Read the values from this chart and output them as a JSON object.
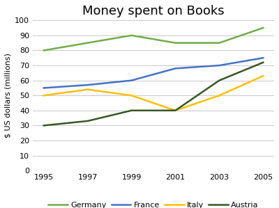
{
  "title": "Money spent on Books",
  "ylabel": "$ US dollars (millions)",
  "years": [
    1995,
    1997,
    1999,
    2001,
    2003,
    2005
  ],
  "series": {
    "Germany": {
      "values": [
        80,
        85,
        90,
        85,
        85,
        95
      ],
      "color": "#70ad47"
    },
    "France": {
      "values": [
        55,
        57,
        60,
        68,
        70,
        75
      ],
      "color": "#4472c4"
    },
    "Italy": {
      "values": [
        50,
        54,
        50,
        40,
        50,
        63
      ],
      "color": "#ffc000"
    },
    "Austria": {
      "values": [
        30,
        33,
        40,
        40,
        60,
        72
      ],
      "color": "#375623"
    }
  },
  "ylim": [
    0,
    100
  ],
  "yticks": [
    0,
    10,
    20,
    30,
    40,
    50,
    60,
    70,
    80,
    90,
    100
  ],
  "background_color": "#ffffff",
  "grid_color": "#c8c8c8",
  "legend_ncol": 4,
  "title_fontsize": 13,
  "axis_label_fontsize": 8,
  "tick_fontsize": 8,
  "legend_fontsize": 8,
  "line_width": 1.8
}
